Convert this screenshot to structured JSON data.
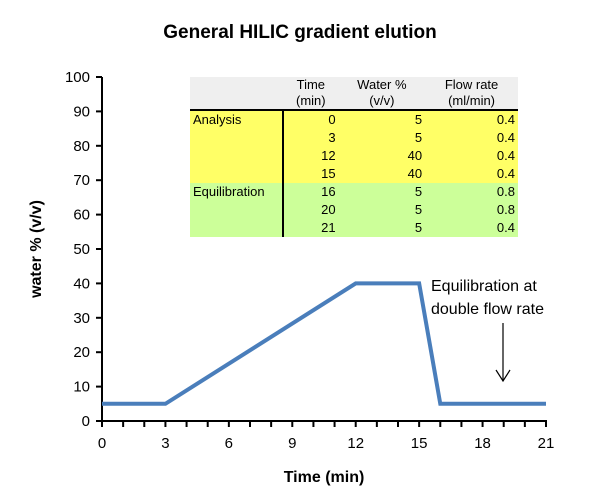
{
  "chart_data": {
    "type": "line",
    "title": "General HILIC gradient elution",
    "xlabel": "Time (min)",
    "ylabel": "water % (v/v)",
    "xlim": [
      0,
      21
    ],
    "ylim": [
      0,
      100
    ],
    "xticks": [
      0,
      3,
      6,
      9,
      12,
      15,
      18,
      21
    ],
    "yticks": [
      0,
      10,
      20,
      30,
      40,
      50,
      60,
      70,
      80,
      90,
      100
    ],
    "grid": false,
    "legend": null,
    "series": [
      {
        "name": "water %",
        "color": "#4a7ebb",
        "x": [
          0,
          3,
          12,
          15,
          16,
          20,
          21
        ],
        "y": [
          5,
          5,
          40,
          40,
          5,
          5,
          5
        ]
      }
    ],
    "annotations": [
      {
        "text_line1": "Equilibration at",
        "text_line2": "double flow rate",
        "arrow_to": [
          19,
          5
        ]
      }
    ],
    "table": {
      "headers": [
        {
          "line1": "",
          "line2": ""
        },
        {
          "line1": "Time",
          "line2": "(min)"
        },
        {
          "line1": "Water %",
          "line2": "(v/v)"
        },
        {
          "line1": "Flow rate",
          "line2": "(ml/min)"
        }
      ],
      "rows": [
        {
          "phase": "Analysis",
          "time": "0",
          "water": "5",
          "flow": "0.4"
        },
        {
          "phase": "",
          "time": "3",
          "water": "5",
          "flow": "0.4"
        },
        {
          "phase": "",
          "time": "12",
          "water": "40",
          "flow": "0.4"
        },
        {
          "phase": "",
          "time": "15",
          "water": "40",
          "flow": "0.4"
        },
        {
          "phase": "Equilibration",
          "time": "16",
          "water": "5",
          "flow": "0.8"
        },
        {
          "phase": "",
          "time": "20",
          "water": "5",
          "flow": "0.8"
        },
        {
          "phase": "",
          "time": "21",
          "water": "5",
          "flow": "0.4"
        }
      ],
      "colors": {
        "analysis": "#ffff66",
        "equilibration": "#ccff99",
        "header": "#efefef"
      }
    }
  }
}
